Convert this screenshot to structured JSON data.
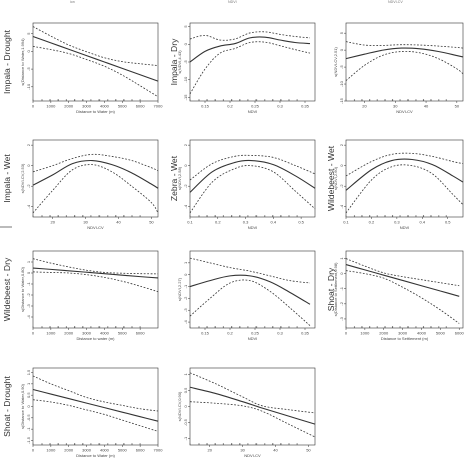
{
  "top_crop_text": [
    "ion",
    "NDVI",
    "NDVI-CV"
  ],
  "chart_data": [
    {
      "type": "line",
      "row_label": "Impala - Drought",
      "title": "",
      "xlabel": "Distance to Water (m)",
      "ylabel": "s(Distance to Water,1.994)",
      "xlim": [
        0,
        7000
      ],
      "ylim": [
        -14,
        8
      ],
      "xticks": [
        0,
        1000,
        2000,
        3000,
        4000,
        5000,
        6000,
        7000
      ],
      "yticks": [
        -10,
        -5,
        0,
        5
      ],
      "x": [
        0,
        1000,
        2000,
        3000,
        4000,
        5000,
        6000,
        7000
      ],
      "series": [
        {
          "role": "fit",
          "values": [
            4.2,
            2.4,
            0.6,
            -1.2,
            -3.0,
            -4.8,
            -6.6,
            -8.4
          ]
        },
        {
          "role": "upper",
          "values": [
            7.0,
            4.3,
            1.8,
            -0.1,
            -1.8,
            -2.9,
            -3.5,
            -4.0
          ]
        },
        {
          "role": "lower",
          "values": [
            1.4,
            0.5,
            -0.6,
            -2.3,
            -4.2,
            -6.7,
            -9.7,
            -12.8
          ]
        }
      ]
    },
    {
      "type": "line",
      "row_label": "Impala - Dry",
      "title": "",
      "xlabel": "NDVI",
      "ylabel": "s(NDVI,4.43)",
      "xlim": [
        0.12,
        0.37
      ],
      "ylim": [
        -16,
        6
      ],
      "xticks": [
        0.15,
        0.2,
        0.25,
        0.3,
        0.35
      ],
      "yticks": [
        -15,
        -10,
        -5,
        0,
        5
      ],
      "x": [
        0.12,
        0.15,
        0.18,
        0.21,
        0.24,
        0.27,
        0.3,
        0.33,
        0.36
      ],
      "series": [
        {
          "role": "fit",
          "values": [
            -5.0,
            -2.0,
            -0.5,
            0.2,
            1.8,
            2.0,
            1.2,
            0.5,
            0.2
          ]
        },
        {
          "role": "upper",
          "values": [
            1.5,
            2.5,
            1.2,
            1.5,
            3.2,
            3.5,
            2.8,
            2.2,
            1.8
          ]
        },
        {
          "role": "lower",
          "values": [
            -14.0,
            -7.0,
            -2.5,
            -1.2,
            0.5,
            0.6,
            -0.4,
            -1.5,
            -2.5
          ]
        }
      ]
    },
    {
      "type": "line",
      "row_label": "",
      "title": "",
      "xlabel": "NDVI-CV",
      "ylabel": "s(NDVI-CV,2.51)",
      "xlim": [
        14,
        52
      ],
      "ylim": [
        -15,
        8
      ],
      "xticks": [
        20,
        30,
        40,
        50
      ],
      "yticks": [
        -15,
        -10,
        -5,
        0,
        5
      ],
      "x": [
        14,
        20,
        26,
        32,
        38,
        44,
        50,
        52
      ],
      "series": [
        {
          "role": "fit",
          "values": [
            -2.5,
            -1.2,
            0.0,
            0.6,
            0.4,
            -0.4,
            -1.6,
            -2.0
          ]
        },
        {
          "role": "upper",
          "values": [
            2.5,
            1.5,
            1.4,
            1.6,
            1.5,
            1.2,
            0.8,
            0.6
          ]
        },
        {
          "role": "lower",
          "values": [
            -9.0,
            -4.5,
            -1.5,
            -0.4,
            -0.8,
            -2.5,
            -5.5,
            -7.0
          ]
        }
      ]
    },
    {
      "type": "line",
      "row_label": "Impala - Wet",
      "title": "",
      "xlabel": "NDVI-CV",
      "ylabel": "s(NDVI-CV,2.53)",
      "xlim": [
        14,
        52
      ],
      "ylim": [
        -5,
        2.5
      ],
      "xticks": [
        20,
        30,
        40,
        50
      ],
      "yticks": [
        -4,
        -2,
        0,
        2
      ],
      "x": [
        14,
        20,
        26,
        32,
        38,
        44,
        50,
        52
      ],
      "series": [
        {
          "role": "fit",
          "values": [
            -1.9,
            -0.9,
            0.2,
            0.5,
            0.1,
            -0.7,
            -1.8,
            -2.2
          ]
        },
        {
          "role": "upper",
          "values": [
            -0.6,
            0.0,
            0.7,
            1.1,
            0.9,
            0.5,
            -0.2,
            -0.5
          ]
        },
        {
          "role": "lower",
          "values": [
            -4.6,
            -2.4,
            -0.4,
            0.1,
            -0.6,
            -2.0,
            -3.6,
            -4.6
          ]
        }
      ]
    },
    {
      "type": "line",
      "row_label": "Zebra - Wet",
      "title": "",
      "xlabel": "NDVI",
      "ylabel": "s(NDVI,2.58)",
      "xlim": [
        0.1,
        0.55
      ],
      "ylim": [
        -5,
        2.5
      ],
      "xticks": [
        0.1,
        0.2,
        0.3,
        0.4,
        0.5
      ],
      "yticks": [
        -4,
        -2,
        0,
        2
      ],
      "x": [
        0.1,
        0.18,
        0.26,
        0.32,
        0.4,
        0.48,
        0.55
      ],
      "series": [
        {
          "role": "fit",
          "values": [
            -2.6,
            -0.6,
            0.3,
            0.5,
            0.1,
            -1.0,
            -2.2
          ]
        },
        {
          "role": "upper",
          "values": [
            -1.4,
            0.2,
            0.9,
            1.0,
            0.8,
            0.0,
            -0.8
          ]
        },
        {
          "role": "lower",
          "values": [
            -4.6,
            -1.6,
            -0.3,
            0.0,
            -0.6,
            -2.5,
            -4.2
          ]
        }
      ]
    },
    {
      "type": "line",
      "row_label": "Wildebeest - Wet",
      "title": "",
      "xlabel": "NDVI",
      "ylabel": "s(NDVI,2.60)",
      "xlim": [
        0.1,
        0.56
      ],
      "ylim": [
        -5,
        2.5
      ],
      "xticks": [
        0.1,
        0.2,
        0.3,
        0.4,
        0.5
      ],
      "yticks": [
        -4,
        -2,
        0,
        2
      ],
      "x": [
        0.1,
        0.2,
        0.28,
        0.36,
        0.44,
        0.52,
        0.56
      ],
      "series": [
        {
          "role": "fit",
          "values": [
            -2.4,
            -0.4,
            0.5,
            0.6,
            0.1,
            -1.0,
            -1.6
          ]
        },
        {
          "role": "upper",
          "values": [
            -1.0,
            0.4,
            1.1,
            1.2,
            0.9,
            0.4,
            0.2
          ]
        },
        {
          "role": "lower",
          "values": [
            -4.6,
            -1.4,
            -0.1,
            0.0,
            -0.8,
            -2.8,
            -3.8
          ]
        }
      ]
    },
    {
      "type": "line",
      "row_label": "Wildebeest - Dry",
      "title": "",
      "xlabel": "Distance to water (m)",
      "ylabel": "s(Distance to Water,0.80)",
      "xlim": [
        0,
        7000
      ],
      "ylim": [
        -5,
        2
      ],
      "xticks": [
        0,
        1000,
        2000,
        3000,
        4000,
        5000,
        6000
      ],
      "yticks": [
        -4,
        -3,
        -2,
        -1,
        0,
        1
      ],
      "x": [
        0,
        1000,
        2000,
        3000,
        4000,
        5000,
        6000,
        7000
      ],
      "series": [
        {
          "role": "fit",
          "values": [
            0.45,
            0.33,
            0.2,
            0.07,
            -0.06,
            -0.2,
            -0.33,
            -0.45
          ]
        },
        {
          "role": "upper",
          "values": [
            1.3,
            0.9,
            0.55,
            0.25,
            0.05,
            -0.02,
            -0.06,
            -0.08
          ]
        },
        {
          "role": "lower",
          "values": [
            0.1,
            0.05,
            0.0,
            -0.15,
            -0.4,
            -0.75,
            -1.2,
            -1.7
          ]
        }
      ]
    },
    {
      "type": "line",
      "row_label": "",
      "title": "",
      "xlabel": "NDVI",
      "ylabel": "s(NDVI,2.27)",
      "xlim": [
        0.12,
        0.37
      ],
      "ylim": [
        -4.5,
        2
      ],
      "xticks": [
        0.15,
        0.2,
        0.25,
        0.3,
        0.35
      ],
      "yticks": [
        -4,
        -3,
        -2,
        -1,
        0,
        1
      ],
      "x": [
        0.12,
        0.16,
        0.2,
        0.24,
        0.28,
        0.32,
        0.36
      ],
      "series": [
        {
          "role": "fit",
          "values": [
            -1.0,
            -0.5,
            -0.1,
            -0.1,
            -0.6,
            -1.5,
            -2.5
          ]
        },
        {
          "role": "upper",
          "values": [
            1.4,
            1.0,
            0.6,
            0.3,
            -0.1,
            -0.5,
            -0.7
          ]
        },
        {
          "role": "lower",
          "values": [
            -3.5,
            -2.0,
            -0.7,
            -0.5,
            -1.4,
            -2.8,
            -4.3
          ]
        }
      ]
    },
    {
      "type": "line",
      "row_label": "Shoat - Dry",
      "title": "",
      "xlabel": "Distance to Settlement (m)",
      "ylabel": "s(Distance to Settlement,0.98)",
      "xlim": [
        0,
        6200
      ],
      "ylim": [
        -3.6,
        1.5
      ],
      "xticks": [
        0,
        1000,
        2000,
        3000,
        4000,
        5000,
        6000
      ],
      "yticks": [
        -3,
        -2,
        -1,
        0,
        1
      ],
      "x": [
        0,
        1000,
        2000,
        3000,
        4000,
        5000,
        6000
      ],
      "series": [
        {
          "role": "fit",
          "values": [
            0.6,
            0.25,
            -0.1,
            -0.45,
            -0.8,
            -1.15,
            -1.5
          ]
        },
        {
          "role": "upper",
          "values": [
            1.0,
            0.5,
            0.05,
            -0.2,
            -0.4,
            -0.6,
            -0.8
          ]
        },
        {
          "role": "lower",
          "values": [
            0.2,
            0.0,
            -0.3,
            -0.9,
            -1.6,
            -2.4,
            -3.3
          ]
        }
      ]
    },
    {
      "type": "line",
      "row_label": "Shoat - Drought",
      "title": "",
      "xlabel": "Distance to Water (m)",
      "ylabel": "s(Distance to Water,0.90)",
      "xlim": [
        0,
        7000
      ],
      "ylim": [
        -1.7,
        1.7
      ],
      "xticks": [
        0,
        1000,
        2000,
        3000,
        4000,
        5000,
        6000,
        7000
      ],
      "yticks": [
        -1.5,
        -1.0,
        -0.5,
        0.0,
        0.5,
        1.0,
        1.5
      ],
      "x": [
        0,
        1000,
        2000,
        3000,
        4000,
        5000,
        6000,
        7000
      ],
      "series": [
        {
          "role": "fit",
          "values": [
            0.75,
            0.55,
            0.35,
            0.15,
            -0.05,
            -0.25,
            -0.45,
            -0.65
          ]
        },
        {
          "role": "upper",
          "values": [
            1.35,
            1.0,
            0.7,
            0.4,
            0.2,
            0.05,
            -0.1,
            -0.2
          ]
        },
        {
          "role": "lower",
          "values": [
            0.3,
            0.2,
            0.05,
            -0.15,
            -0.35,
            -0.6,
            -0.85,
            -1.1
          ]
        }
      ]
    },
    {
      "type": "line",
      "row_label": "",
      "title": "",
      "xlabel": "NDVI-CV",
      "ylabel": "s(NDVI-CV,0.90)",
      "xlim": [
        14,
        52
      ],
      "ylim": [
        -1.2,
        1.2
      ],
      "xticks": [
        20,
        30,
        40,
        50
      ],
      "yticks": [
        -1.0,
        -0.5,
        0.0,
        0.5,
        1.0
      ],
      "x": [
        14,
        22,
        30,
        36,
        44,
        52
      ],
      "series": [
        {
          "role": "fit",
          "values": [
            0.6,
            0.4,
            0.15,
            -0.05,
            -0.3,
            -0.55
          ]
        },
        {
          "role": "upper",
          "values": [
            1.05,
            0.7,
            0.3,
            0.02,
            -0.1,
            -0.2
          ]
        },
        {
          "role": "lower",
          "values": [
            0.15,
            0.1,
            0.02,
            -0.15,
            -0.55,
            -0.95
          ]
        }
      ]
    }
  ]
}
